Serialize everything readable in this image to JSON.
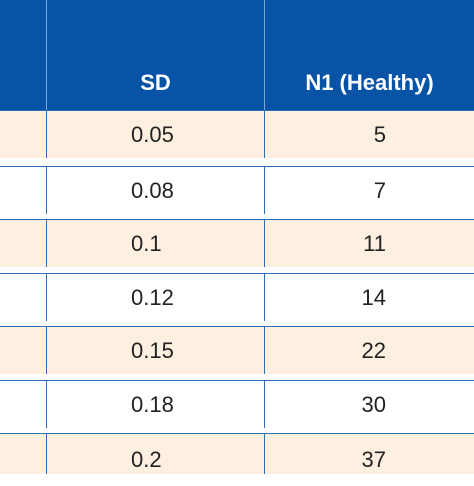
{
  "table": {
    "headers": [
      "",
      "SD",
      "N1 (Healthy)"
    ],
    "rows": [
      {
        "sd": "0.05",
        "n1": "5"
      },
      {
        "sd": "0.08",
        "n1": "7"
      },
      {
        "sd": "0.1",
        "n1": "11"
      },
      {
        "sd": "0.12",
        "n1": "14"
      },
      {
        "sd": "0.15",
        "n1": "22"
      },
      {
        "sd": "0.18",
        "n1": "30"
      },
      {
        "sd": "0.2",
        "n1": "37"
      }
    ]
  },
  "colors": {
    "header_bg": "#0753a6",
    "header_text": "#ffffff",
    "alt_row_bg": "#fdf0e0",
    "plain_row_bg": "#ffffff",
    "grid_line": "#2a6db8"
  }
}
